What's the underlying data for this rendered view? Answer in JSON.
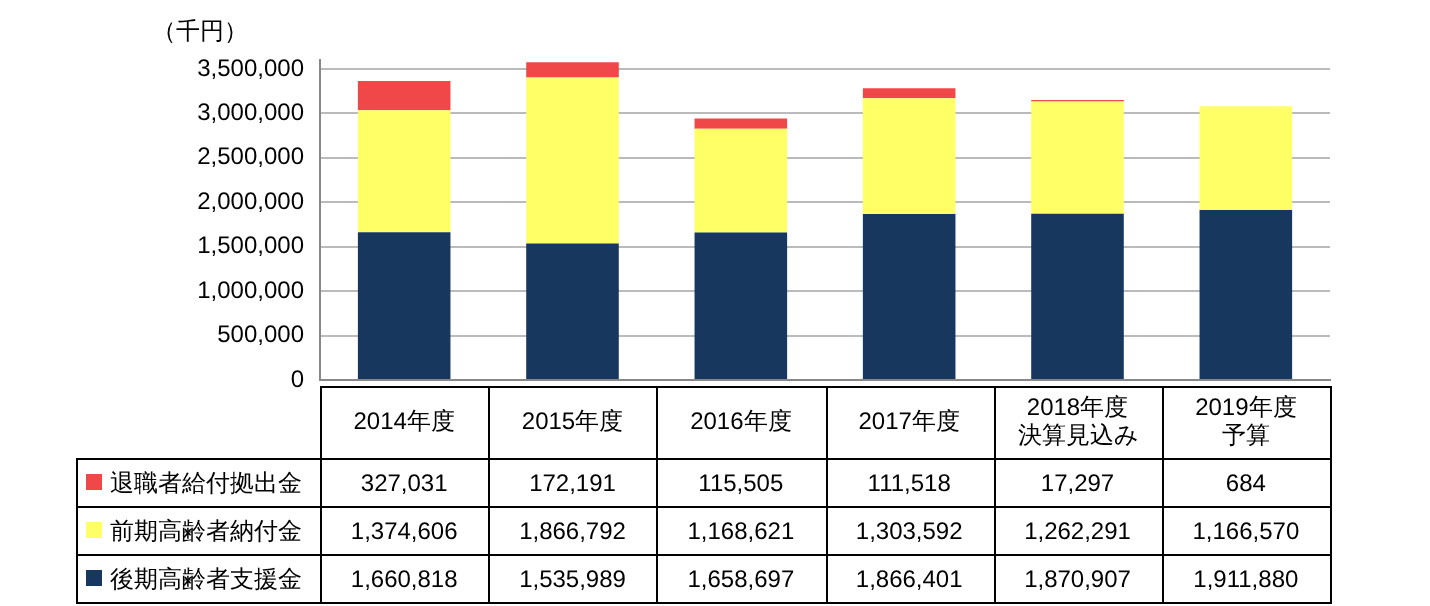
{
  "chart_data": {
    "type": "bar",
    "stacked": true,
    "ylabel": "（千円）",
    "categories": [
      "2014年度",
      "2015年度",
      "2016年度",
      "2017年度",
      "2018年度決算見込み",
      "2019年度予算"
    ],
    "series": [
      {
        "name": "後期高齢者支援金",
        "color": "#17375e",
        "values": [
          1660818,
          1535989,
          1658697,
          1866401,
          1870907,
          1911880
        ],
        "value_labels": [
          "1,660,818",
          "1,535,989",
          "1,658,697",
          "1,866,401",
          "1,870,907",
          "1,911,880"
        ]
      },
      {
        "name": "前期高齢者納付金",
        "color": "#ffff66",
        "values": [
          1374606,
          1866792,
          1168621,
          1303592,
          1262291,
          1166570
        ],
        "value_labels": [
          "1,374,606",
          "1,866,792",
          "1,168,621",
          "1,303,592",
          "1,262,291",
          "1,166,570"
        ]
      },
      {
        "name": "退職者給付拠出金",
        "color": "#f04848",
        "values": [
          327031,
          172191,
          115505,
          111518,
          17297,
          684
        ],
        "value_labels": [
          "327,031",
          "172,191",
          "115,505",
          "111,518",
          "17,297",
          "684"
        ]
      }
    ],
    "ylim": [
      0,
      3600000
    ],
    "yticks": [
      {
        "value": 0,
        "label": "0"
      },
      {
        "value": 500000,
        "label": "500,000"
      },
      {
        "value": 1000000,
        "label": "1,000,000"
      },
      {
        "value": 1500000,
        "label": "1,500,000"
      },
      {
        "value": 2000000,
        "label": "2,000,000"
      },
      {
        "value": 2500000,
        "label": "2,500,000"
      },
      {
        "value": 3000000,
        "label": "3,000,000"
      },
      {
        "value": 3500000,
        "label": "3,500,000"
      }
    ],
    "grid": "y",
    "legend": "bottom"
  }
}
